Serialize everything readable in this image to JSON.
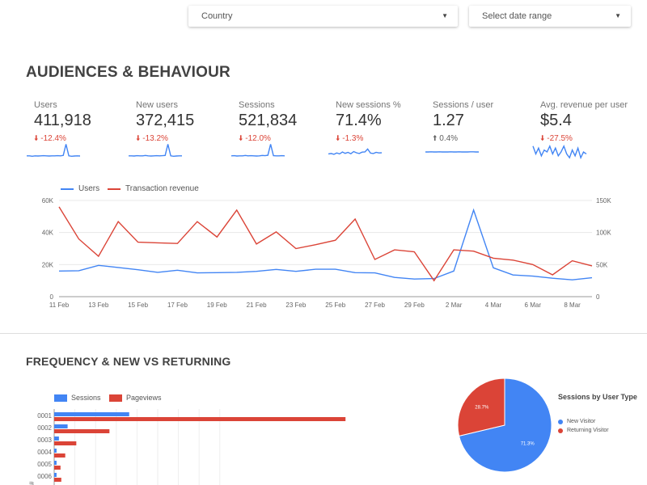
{
  "filters": {
    "country": "Country",
    "date_range": "Select date range"
  },
  "section1": {
    "title": "AUDIENCES & BEHAVIOUR"
  },
  "kpis": [
    {
      "label": "Users",
      "value": "411,918",
      "delta": "-12.4%",
      "direction": "down",
      "spark": [
        3,
        3,
        2.8,
        3,
        2.9,
        3,
        3.1,
        3,
        2.9,
        3,
        3,
        3.1,
        3,
        3.2,
        9,
        3,
        2.8,
        2.9,
        3,
        2.9
      ]
    },
    {
      "label": "New users",
      "value": "372,415",
      "delta": "-13.2%",
      "direction": "down",
      "spark": [
        3,
        3,
        2.9,
        3.1,
        3,
        3,
        3.2,
        3,
        2.9,
        3,
        3.1,
        3,
        3.1,
        3.2,
        9,
        3,
        2.8,
        2.9,
        3,
        3
      ]
    },
    {
      "label": "Sessions",
      "value": "521,834",
      "delta": "-12.0%",
      "direction": "down",
      "spark": [
        3,
        3.1,
        2.9,
        3,
        3,
        3.2,
        3,
        3.1,
        3,
        2.9,
        3,
        3.2,
        3.1,
        3.3,
        9,
        3.1,
        3,
        3,
        3.1,
        3
      ]
    },
    {
      "label": "New sessions %",
      "value": "71.4%",
      "direction": "down",
      "delta": "-1.3%",
      "spark": [
        4,
        4.2,
        3.8,
        4.5,
        4,
        5,
        4.3,
        4.8,
        4.1,
        5.2,
        4.6,
        4.2,
        4.9,
        5,
        6.5,
        4.4,
        4.2,
        4.8,
        4.5,
        4.6
      ]
    },
    {
      "label": "Sessions / user",
      "value": "1.27",
      "delta": "0.4%",
      "direction": "up",
      "spark": [
        5,
        5,
        5.1,
        5,
        5,
        5.1,
        5,
        5,
        5,
        5.1,
        5,
        5,
        5.1,
        5,
        5,
        5,
        5.1,
        5.1,
        5,
        5
      ]
    },
    {
      "label": "Avg. revenue per user",
      "value": "$5.4",
      "delta": "-27.5%",
      "direction": "down",
      "spark": [
        8,
        4,
        7,
        3,
        6,
        5,
        8,
        4,
        7,
        3,
        5,
        8,
        4,
        2,
        6,
        3,
        7,
        2,
        5,
        4
      ]
    }
  ],
  "chart_data": [
    {
      "type": "line",
      "x": [
        "11 Feb",
        "12 Feb",
        "13 Feb",
        "14 Feb",
        "15 Feb",
        "16 Feb",
        "17 Feb",
        "18 Feb",
        "19 Feb",
        "20 Feb",
        "21 Feb",
        "22 Feb",
        "23 Feb",
        "24 Feb",
        "25 Feb",
        "26 Feb",
        "27 Feb",
        "28 Feb",
        "29 Feb",
        "1 Mar",
        "2 Mar",
        "3 Mar",
        "4 Mar",
        "5 Mar",
        "6 Mar",
        "7 Mar",
        "8 Mar",
        "9 Mar"
      ],
      "xticks": [
        "11 Feb",
        "13 Feb",
        "15 Feb",
        "17 Feb",
        "19 Feb",
        "21 Feb",
        "23 Feb",
        "25 Feb",
        "27 Feb",
        "29 Feb",
        "2 Mar",
        "4 Mar",
        "6 Mar",
        "8 Mar"
      ],
      "series": [
        {
          "name": "Users",
          "axis": "left",
          "color": "#4285f4",
          "values": [
            16000,
            16200,
            19500,
            18200,
            16800,
            15200,
            16500,
            14800,
            15000,
            15200,
            15800,
            17000,
            15800,
            17100,
            17100,
            15000,
            14800,
            12000,
            11000,
            11300,
            16000,
            54000,
            18000,
            13500,
            12800,
            11500,
            10500,
            11800
          ]
        },
        {
          "name": "Transaction revenue",
          "axis": "right",
          "color": "#db4437",
          "values": [
            140000,
            90000,
            63000,
            117000,
            85000,
            84000,
            83000,
            117000,
            93000,
            135000,
            82000,
            101000,
            75000,
            81000,
            88000,
            121000,
            58000,
            73000,
            70000,
            25000,
            73000,
            71000,
            60000,
            57000,
            50000,
            34000,
            56000,
            48000
          ]
        }
      ],
      "yleft": {
        "ticks": [
          "0",
          "20K",
          "40K",
          "60K"
        ],
        "range": [
          0,
          60000
        ]
      },
      "yright": {
        "ticks": [
          "0",
          "50K",
          "100K",
          "150K"
        ],
        "range": [
          0,
          150000
        ]
      },
      "legend": "top-left",
      "grid": "horizontal"
    },
    {
      "type": "bar",
      "orientation": "horizontal",
      "categories": [
        "0001",
        "0002",
        "0003",
        "0004",
        "0005",
        "0006"
      ],
      "series": [
        {
          "name": "Sessions",
          "color": "#4285f4",
          "values": [
            95,
            17,
            6,
            3,
            3,
            3
          ]
        },
        {
          "name": "Pageviews",
          "color": "#db4437",
          "values": [
            369,
            70,
            28,
            14,
            8,
            9
          ]
        }
      ],
      "xrange": [
        0,
        420
      ],
      "legend": "top-left"
    },
    {
      "type": "pie",
      "title": "Sessions by User Type",
      "slices": [
        {
          "label": "New Visitor",
          "value": 71.3,
          "text": "71.3%",
          "color": "#4285f4"
        },
        {
          "label": "Returning Visitor",
          "value": 28.7,
          "text": "28.7%",
          "color": "#db4437"
        }
      ],
      "legend": "right"
    }
  ],
  "section2": {
    "title": "FREQUENCY & NEW VS RETURNING",
    "left_axis_stub": "#"
  },
  "icons": {
    "down": "arrow-down-icon",
    "up": "arrow-up-icon",
    "caret": "caret-down-icon"
  }
}
